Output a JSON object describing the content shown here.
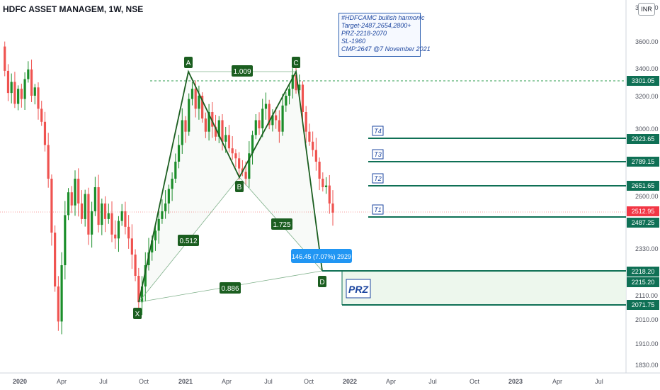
{
  "header": {
    "title": "HDFC ASSET MANAGEM, 1W, NSE",
    "currency_button": "INR"
  },
  "note": {
    "lines": [
      "#HDFCAMC bullish harmonic",
      "Target-2487,2654,2800+",
      "PRZ-2218-2070",
      "SL-1960",
      "CMP:2647 @7 November 2021"
    ]
  },
  "colors": {
    "up": "#26a69a",
    "up_dark": "#1b8e2a",
    "down": "#ef5350",
    "pattern": "#1b5e20",
    "level": "#0f7055",
    "price": "#f23645",
    "measure": "#2196f3"
  },
  "chart_data": {
    "type": "candlestick",
    "x_axis_labels": [
      "2020",
      "Apr",
      "Jul",
      "Oct",
      "2021",
      "Apr",
      "Jul",
      "Oct",
      "2022",
      "Apr",
      "Jul",
      "Oct",
      "2023",
      "Apr",
      "Jul"
    ],
    "y_axis_ticks": [
      "3800.00",
      "3600.00",
      "3400.00",
      "3200.00",
      "3000.00",
      "2800.00",
      "2600.00",
      "2330.00",
      "2110.00",
      "2010.00",
      "1910.00",
      "1830.00"
    ],
    "price_labels": [
      {
        "value": "3301.05",
        "style": "green"
      },
      {
        "value": "2923.65",
        "style": "green"
      },
      {
        "value": "2789.15",
        "style": "green"
      },
      {
        "value": "2651.65",
        "style": "green"
      },
      {
        "value": "2512.95",
        "style": "red"
      },
      {
        "value": "2487.25",
        "style": "green"
      },
      {
        "value": "2218.20",
        "style": "green"
      },
      {
        "value": "2215.20",
        "style": "green"
      },
      {
        "value": "2071.75",
        "style": "green"
      }
    ],
    "pattern_points": [
      "X",
      "A",
      "B",
      "C",
      "D"
    ],
    "pattern_ratios": [
      "1.009",
      "0.512",
      "1.725",
      "0.886"
    ],
    "targets": [
      "T4",
      "T3",
      "T2",
      "T1"
    ],
    "prz_label": "PRZ",
    "measure_label": "146.45 (7.07%) 2929"
  }
}
